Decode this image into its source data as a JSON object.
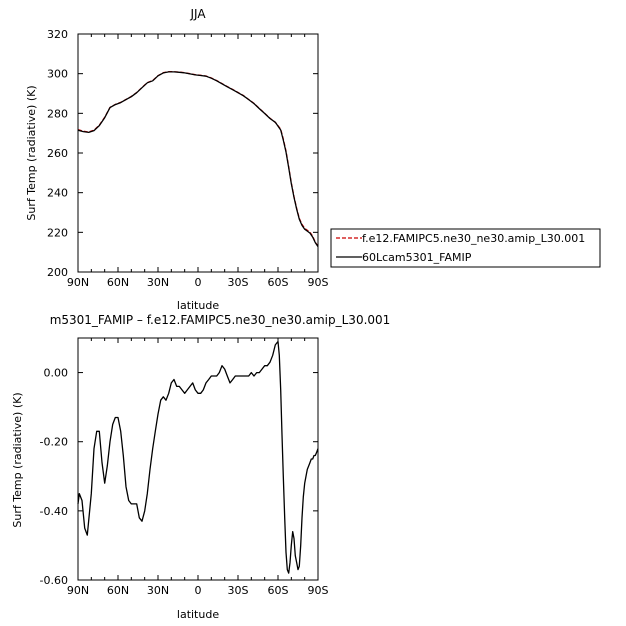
{
  "chart_data": [
    {
      "type": "line",
      "title": "JJA",
      "xlabel": "latitude",
      "ylabel": "Surf Temp (radiative) (K)",
      "xlim": [
        90,
        -90
      ],
      "ylim": [
        200,
        320
      ],
      "x_ticks": [
        {
          "value": 90,
          "label": "90N"
        },
        {
          "value": 60,
          "label": "60N"
        },
        {
          "value": 30,
          "label": "30N"
        },
        {
          "value": 0,
          "label": "0"
        },
        {
          "value": -30,
          "label": "30S"
        },
        {
          "value": -60,
          "label": "60S"
        },
        {
          "value": -90,
          "label": "90S"
        }
      ],
      "y_ticks": [
        200,
        220,
        240,
        260,
        280,
        300,
        320
      ],
      "legend": "right",
      "series": [
        {
          "name": "f.e12.FAMIPC5.ne30_ne30.amip_L30.001",
          "color": "#cc0000",
          "dash": "dashed",
          "x": [
            90,
            86,
            82,
            78,
            74,
            70,
            66,
            62,
            58,
            54,
            50,
            46,
            42,
            38,
            34,
            30,
            26,
            22,
            18,
            14,
            10,
            6,
            2,
            -2,
            -6,
            -10,
            -14,
            -18,
            -22,
            -26,
            -30,
            -34,
            -38,
            -42,
            -46,
            -50,
            -54,
            -58,
            -62,
            -64,
            -66,
            -68,
            -70,
            -72,
            -74,
            -76,
            -78,
            -80,
            -82,
            -84,
            -86,
            -88,
            -90
          ],
          "y": [
            271.8,
            271.0,
            270.6,
            271.5,
            274,
            278,
            283,
            284.5,
            285.5,
            287,
            288.5,
            290.5,
            293,
            295.5,
            296.5,
            299,
            300.5,
            301,
            301,
            300.8,
            300.5,
            300,
            299.5,
            299.2,
            298.8,
            297.8,
            296.5,
            295,
            293.5,
            292,
            290.5,
            289,
            287,
            285,
            282.5,
            280,
            277.5,
            275.5,
            272,
            267,
            261,
            253,
            245,
            238,
            232,
            227,
            224,
            222,
            221,
            220,
            218,
            215,
            213
          ]
        },
        {
          "name": "60Lcam5301_FAMIP",
          "color": "#000000",
          "dash": "solid",
          "x": [
            90,
            86,
            82,
            78,
            74,
            70,
            66,
            62,
            58,
            54,
            50,
            46,
            42,
            38,
            34,
            30,
            26,
            22,
            18,
            14,
            10,
            6,
            2,
            -2,
            -6,
            -10,
            -14,
            -18,
            -22,
            -26,
            -30,
            -34,
            -38,
            -42,
            -46,
            -50,
            -54,
            -58,
            -62,
            -64,
            -66,
            -68,
            -70,
            -72,
            -74,
            -76,
            -78,
            -80,
            -82,
            -84,
            -86,
            -88,
            -90
          ],
          "y": [
            271.5,
            270.8,
            270.4,
            271.3,
            273.8,
            277.8,
            282.9,
            284.4,
            285.4,
            286.9,
            288.4,
            290.4,
            292.9,
            295.4,
            296.4,
            298.9,
            300.4,
            300.9,
            300.9,
            300.7,
            300.4,
            299.9,
            299.4,
            299.1,
            298.7,
            297.7,
            296.4,
            294.9,
            293.4,
            291.9,
            290.4,
            288.9,
            286.9,
            284.9,
            282.4,
            279.9,
            277.4,
            275.5,
            271.6,
            266.5,
            260.5,
            252.6,
            244.6,
            237.6,
            231.6,
            226.6,
            223.5,
            221.6,
            220.6,
            219.6,
            217.6,
            214.8,
            212.8
          ]
        }
      ]
    },
    {
      "type": "line",
      "title": "m5301_FAMIP – f.e12.FAMIPC5.ne30_ne30.amip_L30.001",
      "xlabel": "latitude",
      "ylabel": "Surf Temp (radiative) (K)",
      "xlim": [
        90,
        -90
      ],
      "ylim": [
        -0.6,
        0.1
      ],
      "x_ticks": [
        {
          "value": 90,
          "label": "90N"
        },
        {
          "value": 60,
          "label": "60N"
        },
        {
          "value": 30,
          "label": "30N"
        },
        {
          "value": 0,
          "label": "0"
        },
        {
          "value": -30,
          "label": "30S"
        },
        {
          "value": -60,
          "label": "60S"
        },
        {
          "value": -90,
          "label": "90S"
        }
      ],
      "y_ticks": [
        {
          "value": 0.0,
          "label": "0.00"
        },
        {
          "value": -0.2,
          "label": "-0.20"
        },
        {
          "value": -0.4,
          "label": "-0.40"
        },
        {
          "value": -0.6,
          "label": "-0.60"
        }
      ],
      "series": [
        {
          "color": "#000000",
          "dash": "solid",
          "x": [
            90,
            89,
            87,
            85,
            83,
            80,
            78,
            76,
            74,
            72,
            70,
            68,
            66,
            64,
            62,
            60,
            58,
            56,
            54,
            52,
            50,
            48,
            46,
            44,
            42,
            40,
            38,
            36,
            34,
            32,
            30,
            28,
            26,
            24,
            22,
            20,
            18,
            16,
            14,
            12,
            10,
            8,
            6,
            4,
            2,
            0,
            -2,
            -4,
            -6,
            -8,
            -10,
            -12,
            -14,
            -16,
            -18,
            -20,
            -22,
            -24,
            -26,
            -28,
            -30,
            -32,
            -34,
            -36,
            -38,
            -40,
            -42,
            -44,
            -46,
            -48,
            -50,
            -52,
            -54,
            -56,
            -58,
            -60,
            -61,
            -62,
            -63,
            -64,
            -65,
            -66,
            -67,
            -68,
            -69,
            -70,
            -71,
            -72,
            -73,
            -74,
            -75,
            -76,
            -77,
            -78,
            -79,
            -80,
            -81,
            -82,
            -83,
            -84,
            -85,
            -86,
            -87,
            -88,
            -89,
            -90
          ],
          "y": [
            -0.38,
            -0.35,
            -0.37,
            -0.45,
            -0.47,
            -0.35,
            -0.22,
            -0.17,
            -0.17,
            -0.26,
            -0.32,
            -0.27,
            -0.2,
            -0.15,
            -0.13,
            -0.13,
            -0.17,
            -0.24,
            -0.33,
            -0.37,
            -0.38,
            -0.38,
            -0.38,
            -0.42,
            -0.43,
            -0.4,
            -0.35,
            -0.28,
            -0.22,
            -0.17,
            -0.12,
            -0.08,
            -0.07,
            -0.08,
            -0.06,
            -0.03,
            -0.02,
            -0.04,
            -0.04,
            -0.05,
            -0.06,
            -0.05,
            -0.04,
            -0.03,
            -0.05,
            -0.06,
            -0.06,
            -0.05,
            -0.03,
            -0.02,
            -0.01,
            -0.01,
            -0.01,
            0.0,
            0.02,
            0.01,
            -0.01,
            -0.03,
            -0.02,
            -0.01,
            -0.01,
            -0.01,
            -0.01,
            -0.01,
            -0.01,
            0.0,
            -0.01,
            0.0,
            0.0,
            0.01,
            0.02,
            0.02,
            0.03,
            0.05,
            0.08,
            0.09,
            0.05,
            -0.05,
            -0.18,
            -0.3,
            -0.42,
            -0.52,
            -0.57,
            -0.58,
            -0.55,
            -0.5,
            -0.46,
            -0.48,
            -0.53,
            -0.55,
            -0.57,
            -0.56,
            -0.5,
            -0.42,
            -0.36,
            -0.32,
            -0.3,
            -0.28,
            -0.27,
            -0.26,
            -0.25,
            -0.25,
            -0.24,
            -0.24,
            -0.23,
            -0.22
          ]
        }
      ]
    }
  ]
}
